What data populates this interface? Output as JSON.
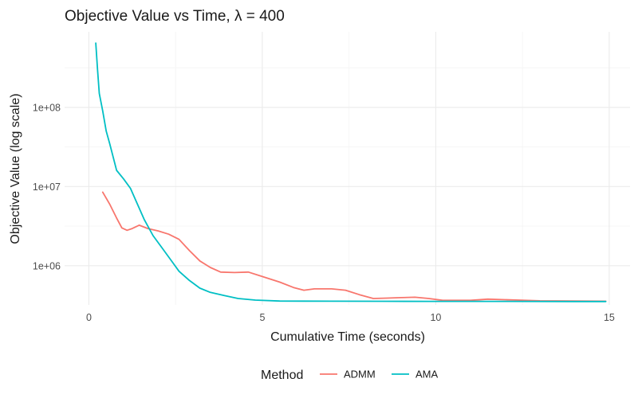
{
  "chart_data": {
    "type": "line",
    "title": "Objective Value vs Time,  λ = 400",
    "xlabel": "Cumulative Time (seconds)",
    "ylabel": "Objective Value (log scale)",
    "xlim": [
      -0.7,
      15.6
    ],
    "ylim": [
      320000,
      900000000
    ],
    "y_scale": "log",
    "x_ticks": [
      0,
      5,
      10,
      15
    ],
    "x_tick_labels": [
      "0",
      "5",
      "10",
      "15"
    ],
    "y_ticks": [
      1000000,
      10000000,
      100000000
    ],
    "y_tick_labels": [
      "1e+06",
      "1e+07",
      "1e+08"
    ],
    "grid": true,
    "legend": {
      "title": "Method",
      "position": "bottom"
    },
    "series": [
      {
        "name": "ADMM",
        "color": "#F8766D",
        "points": [
          [
            0.4,
            8500000
          ],
          [
            0.6,
            6000000
          ],
          [
            0.8,
            4000000
          ],
          [
            0.95,
            3000000
          ],
          [
            1.1,
            2800000
          ],
          [
            1.25,
            2950000
          ],
          [
            1.45,
            3250000
          ],
          [
            1.7,
            2950000
          ],
          [
            2.0,
            2750000
          ],
          [
            2.3,
            2500000
          ],
          [
            2.6,
            2150000
          ],
          [
            2.9,
            1550000
          ],
          [
            3.2,
            1150000
          ],
          [
            3.5,
            950000
          ],
          [
            3.8,
            830000
          ],
          [
            4.2,
            820000
          ],
          [
            4.6,
            830000
          ],
          [
            5.0,
            730000
          ],
          [
            5.5,
            620000
          ],
          [
            5.9,
            530000
          ],
          [
            6.2,
            490000
          ],
          [
            6.5,
            510000
          ],
          [
            7.0,
            510000
          ],
          [
            7.4,
            490000
          ],
          [
            7.8,
            430000
          ],
          [
            8.2,
            385000
          ],
          [
            8.6,
            390000
          ],
          [
            9.0,
            395000
          ],
          [
            9.4,
            400000
          ],
          [
            9.8,
            385000
          ],
          [
            10.2,
            365000
          ],
          [
            11.0,
            365000
          ],
          [
            11.5,
            378000
          ],
          [
            12.0,
            372000
          ],
          [
            13.0,
            360000
          ],
          [
            14.0,
            358000
          ],
          [
            14.9,
            356000
          ]
        ]
      },
      {
        "name": "AMA",
        "color": "#00BFC4",
        "points": [
          [
            0.2,
            650000000
          ],
          [
            0.25,
            300000000
          ],
          [
            0.3,
            150000000
          ],
          [
            0.4,
            90000000
          ],
          [
            0.5,
            50000000
          ],
          [
            0.6,
            35000000
          ],
          [
            0.8,
            16000000
          ],
          [
            1.0,
            12500000
          ],
          [
            1.2,
            9500000
          ],
          [
            1.4,
            6000000
          ],
          [
            1.6,
            3800000
          ],
          [
            1.85,
            2400000
          ],
          [
            2.1,
            1700000
          ],
          [
            2.35,
            1200000
          ],
          [
            2.6,
            850000
          ],
          [
            2.9,
            650000
          ],
          [
            3.2,
            520000
          ],
          [
            3.5,
            460000
          ],
          [
            3.9,
            420000
          ],
          [
            4.3,
            385000
          ],
          [
            4.8,
            368000
          ],
          [
            5.5,
            358000
          ],
          [
            7.0,
            356000
          ],
          [
            8.5,
            355000
          ],
          [
            10.0,
            354000
          ],
          [
            12.0,
            354000
          ],
          [
            14.0,
            353000
          ],
          [
            14.9,
            353000
          ]
        ]
      }
    ]
  }
}
